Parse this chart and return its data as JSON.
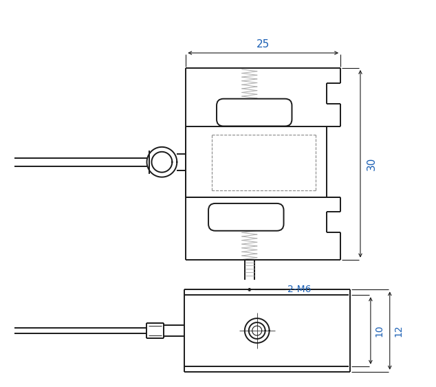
{
  "bg_color": "#ffffff",
  "line_color": "#1a1a1a",
  "dim_color": "#1a5fb4",
  "spring_color": "#aaaaaa",
  "dash_color": "#888888",
  "fig_width": 6.34,
  "fig_height": 5.63,
  "dpi": 100
}
